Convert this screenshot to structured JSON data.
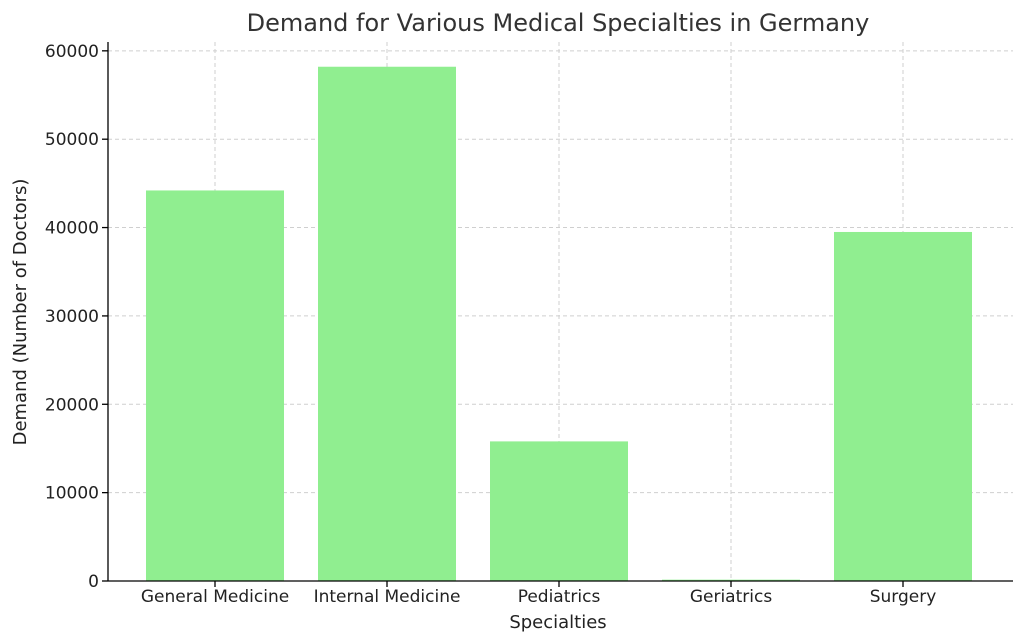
{
  "chart_data": {
    "type": "bar",
    "title": "Demand for Various Medical Specialties in Germany",
    "xlabel": "Specialties",
    "ylabel": "Demand (Number of Doctors)",
    "categories": [
      "General Medicine",
      "Internal Medicine",
      "Pediatrics",
      "Geriatrics",
      "Surgery"
    ],
    "values": [
      44200,
      58200,
      15800,
      150,
      39500
    ],
    "ylim": [
      0,
      61000
    ],
    "yticks": [
      0,
      10000,
      20000,
      30000,
      40000,
      50000,
      60000
    ],
    "grid": true,
    "bar_color": "#90ee90"
  }
}
